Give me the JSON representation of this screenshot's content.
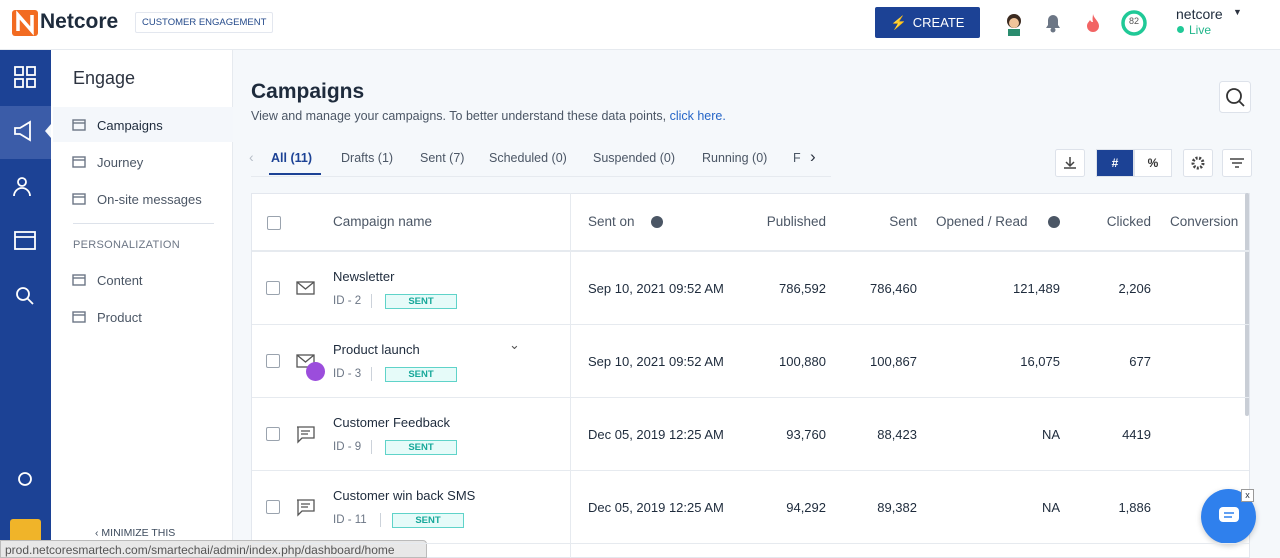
{
  "header": {
    "logo": "Netcore",
    "badge": "CUSTOMER ENGAGEMENT",
    "create": "CREATE",
    "score": "82",
    "account": "netcore",
    "status": "Live"
  },
  "sidebar": {
    "title": "Engage",
    "items": [
      "Campaigns",
      "Journey",
      "On-site messages"
    ],
    "section": "PERSONALIZATION",
    "section_items": [
      "Content",
      "Product"
    ],
    "minimize": "MINIMIZE THIS"
  },
  "main": {
    "title": "Campaigns",
    "subtitle": "View and manage your campaigns. To better understand these data points,",
    "link": "click here.",
    "tabs": [
      "All (11)",
      "Drafts (1)",
      "Sent (7)",
      "Scheduled (0)",
      "Suspended (0)",
      "Running (0)",
      "F"
    ],
    "toggle": [
      "#",
      "%"
    ]
  },
  "table": {
    "headers": [
      "Campaign name",
      "Sent on",
      "Published",
      "Sent",
      "Opened / Read",
      "Clicked",
      "Conversion"
    ],
    "rows": [
      {
        "name": "Newsletter",
        "id": "ID - 2",
        "status": "SENT",
        "sent_on": "Sep 10, 2021 09:52 AM",
        "published": "786,592",
        "sent": "786,460",
        "opened": "121,489",
        "clicked": "2,206"
      },
      {
        "name": "Product launch",
        "id": "ID - 3",
        "status": "SENT",
        "sent_on": "Sep 10, 2021 09:52 AM",
        "published": "100,880",
        "sent": "100,867",
        "opened": "16,075",
        "clicked": "677"
      },
      {
        "name": "Customer Feedback",
        "id": "ID - 9",
        "status": "SENT",
        "sent_on": "Dec 05, 2019 12:25 AM",
        "published": "93,760",
        "sent": "88,423",
        "opened": "NA",
        "clicked": "4419"
      },
      {
        "name": "Customer win back SMS",
        "id": "ID - 11",
        "status": "SENT",
        "sent_on": "Dec 05, 2019 12:25 AM",
        "published": "94,292",
        "sent": "89,382",
        "opened": "NA",
        "clicked": "1,886"
      }
    ]
  },
  "statusbar": {
    "url": "prod.netcoresmartech.com/smartechai/admin/index.php/dashboard/home"
  }
}
